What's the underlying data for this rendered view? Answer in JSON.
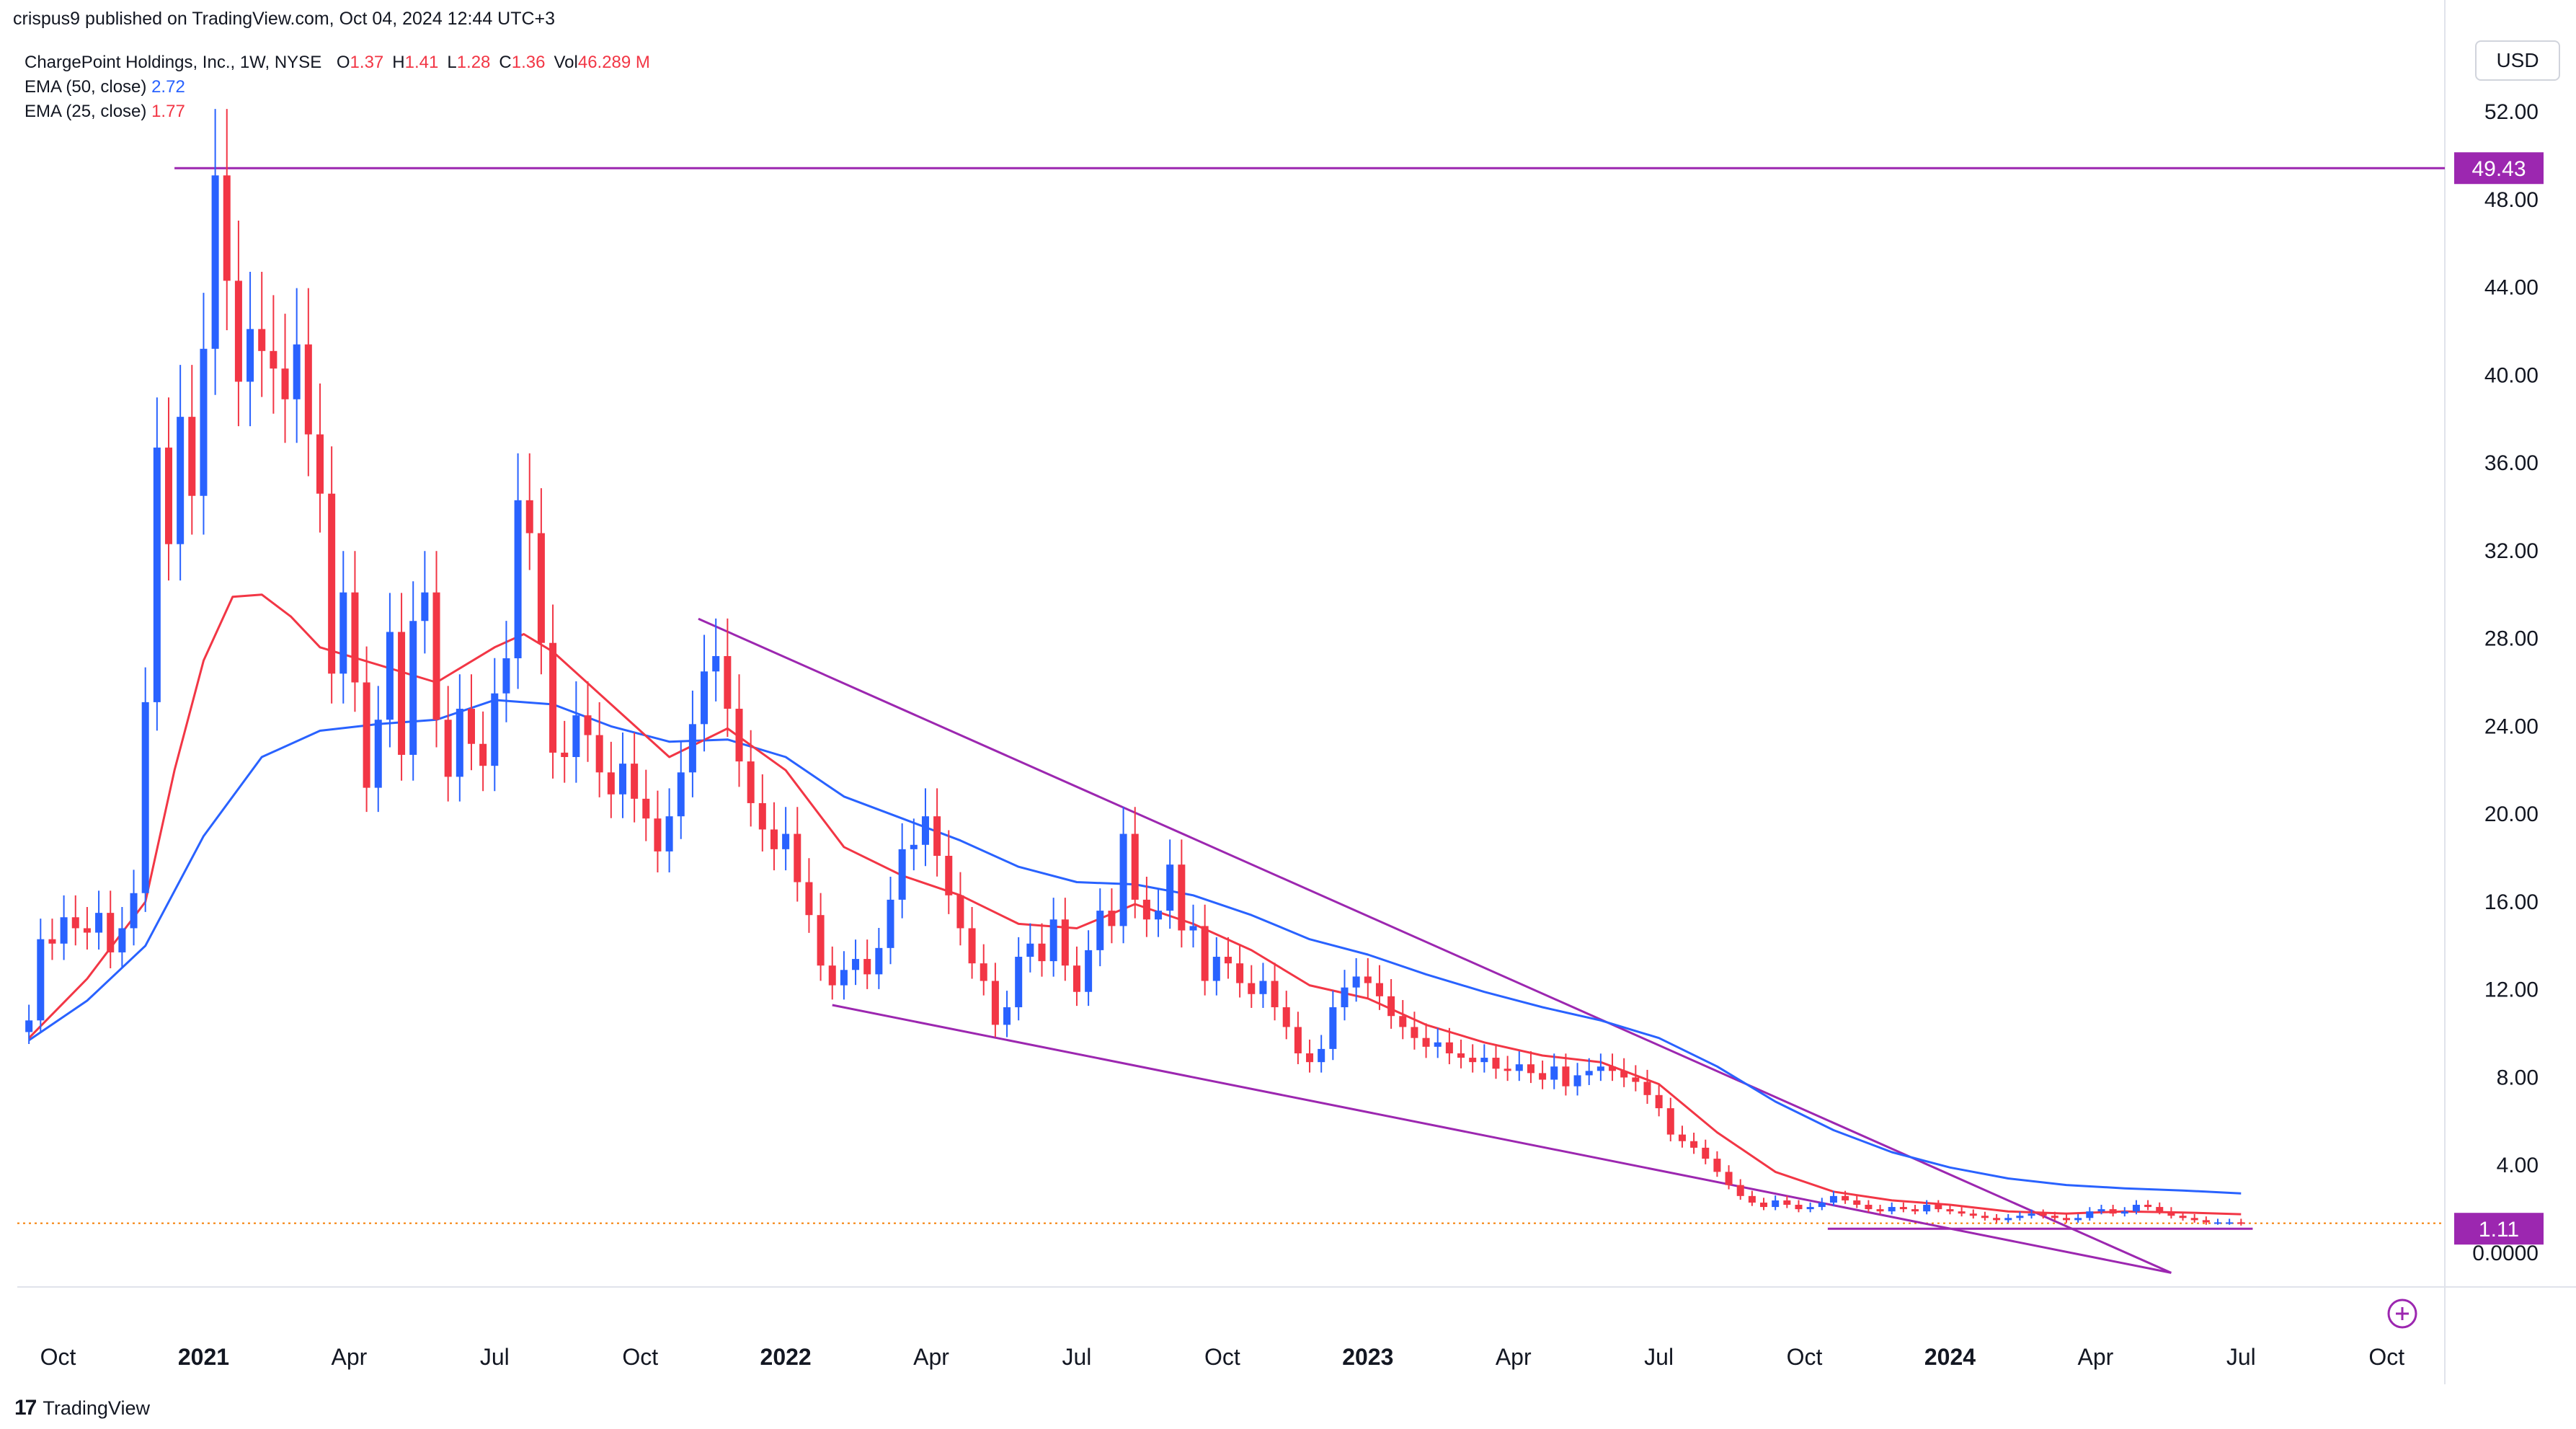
{
  "header": {
    "publisher": "crispus9 published on TradingView.com, Oct 04, 2024 12:44 UTC+3",
    "symbol": "ChargePoint Holdings, Inc., 1W, NYSE",
    "ohlc": [
      {
        "k": "O",
        "v": "1.37"
      },
      {
        "k": "H",
        "v": "1.41"
      },
      {
        "k": "L",
        "v": "1.28"
      },
      {
        "k": "C",
        "v": "1.36"
      },
      {
        "k": "Vol",
        "v": "46.289 M"
      }
    ],
    "indicators": [
      {
        "label": "EMA (50, close)",
        "value": "2.72",
        "color": "#2962ff"
      },
      {
        "label": "EMA (25, close)",
        "value": "1.77",
        "color": "#f23645"
      }
    ]
  },
  "currency_button": "USD",
  "footer": {
    "logo_text": "TradingView",
    "logo_mark": "17"
  },
  "colors": {
    "up": "#2962ff",
    "down": "#f23645",
    "wedge": "#9c27b0",
    "level": "#9c27b0",
    "ema50": "#2962ff",
    "ema25": "#f23645",
    "price_dotted": "#f57c00"
  },
  "chart_data": {
    "type": "candlestick",
    "interval": "1W",
    "y_axis": {
      "min": 0,
      "max": 52,
      "side": "right",
      "ticks": [
        "52.00",
        "48.00",
        "44.00",
        "40.00",
        "36.00",
        "32.00",
        "28.00",
        "24.00",
        "20.00",
        "16.00",
        "12.00",
        "8.00",
        "4.00",
        "0.0000"
      ],
      "tick_values": [
        52,
        48,
        44,
        40,
        36,
        32,
        28,
        24,
        20,
        16,
        12,
        8,
        4,
        0
      ]
    },
    "x_axis": {
      "ticks": [
        {
          "label": "Oct",
          "t": 2020.75,
          "bold": false
        },
        {
          "label": "2021",
          "t": 2021.0,
          "bold": true
        },
        {
          "label": "Apr",
          "t": 2021.25,
          "bold": false
        },
        {
          "label": "Jul",
          "t": 2021.5,
          "bold": false
        },
        {
          "label": "Oct",
          "t": 2021.75,
          "bold": false
        },
        {
          "label": "2022",
          "t": 2022.0,
          "bold": true
        },
        {
          "label": "Apr",
          "t": 2022.25,
          "bold": false
        },
        {
          "label": "Jul",
          "t": 2022.5,
          "bold": false
        },
        {
          "label": "Oct",
          "t": 2022.75,
          "bold": false
        },
        {
          "label": "2023",
          "t": 2023.0,
          "bold": true
        },
        {
          "label": "Apr",
          "t": 2023.25,
          "bold": false
        },
        {
          "label": "Jul",
          "t": 2023.5,
          "bold": false
        },
        {
          "label": "Oct",
          "t": 2023.75,
          "bold": false
        },
        {
          "label": "2024",
          "t": 2024.0,
          "bold": true
        },
        {
          "label": "Apr",
          "t": 2024.25,
          "bold": false
        },
        {
          "label": "Jul",
          "t": 2024.5,
          "bold": false
        },
        {
          "label": "Oct",
          "t": 2024.75,
          "bold": false
        }
      ]
    },
    "series": {
      "close": [
        [
          2020.7,
          10.6
        ],
        [
          2020.72,
          14.3
        ],
        [
          2020.74,
          14.1
        ],
        [
          2020.76,
          15.3
        ],
        [
          2020.78,
          14.8
        ],
        [
          2020.8,
          14.6
        ],
        [
          2020.82,
          15.5
        ],
        [
          2020.84,
          13.7
        ],
        [
          2020.86,
          14.8
        ],
        [
          2020.88,
          16.4
        ],
        [
          2020.9,
          25.1
        ],
        [
          2020.92,
          36.7
        ],
        [
          2020.94,
          32.3
        ],
        [
          2020.96,
          38.1
        ],
        [
          2020.98,
          34.5
        ],
        [
          2021.0,
          41.2
        ],
        [
          2021.02,
          49.1
        ],
        [
          2021.04,
          44.3
        ],
        [
          2021.06,
          39.7
        ],
        [
          2021.08,
          42.1
        ],
        [
          2021.1,
          41.1
        ],
        [
          2021.12,
          40.3
        ],
        [
          2021.14,
          38.9
        ],
        [
          2021.16,
          41.4
        ],
        [
          2021.18,
          37.3
        ],
        [
          2021.2,
          34.6
        ],
        [
          2021.22,
          26.4
        ],
        [
          2021.24,
          30.1
        ],
        [
          2021.26,
          26.0
        ],
        [
          2021.28,
          21.2
        ],
        [
          2021.3,
          24.3
        ],
        [
          2021.32,
          28.3
        ],
        [
          2021.34,
          22.7
        ],
        [
          2021.36,
          28.8
        ],
        [
          2021.38,
          30.1
        ],
        [
          2021.4,
          24.3
        ],
        [
          2021.42,
          21.7
        ],
        [
          2021.44,
          24.8
        ],
        [
          2021.46,
          23.2
        ],
        [
          2021.48,
          22.2
        ],
        [
          2021.5,
          25.5
        ],
        [
          2021.52,
          27.1
        ],
        [
          2021.54,
          34.3
        ],
        [
          2021.56,
          32.8
        ],
        [
          2021.58,
          27.8
        ],
        [
          2021.6,
          22.8
        ],
        [
          2021.62,
          22.6
        ],
        [
          2021.64,
          24.5
        ],
        [
          2021.66,
          23.6
        ],
        [
          2021.68,
          21.9
        ],
        [
          2021.7,
          20.9
        ],
        [
          2021.72,
          22.3
        ],
        [
          2021.74,
          20.7
        ],
        [
          2021.76,
          19.8
        ],
        [
          2021.78,
          18.3
        ],
        [
          2021.8,
          19.9
        ],
        [
          2021.82,
          21.9
        ],
        [
          2021.84,
          24.1
        ],
        [
          2021.86,
          26.5
        ],
        [
          2021.88,
          27.2
        ],
        [
          2021.9,
          24.8
        ],
        [
          2021.92,
          22.4
        ],
        [
          2021.94,
          20.5
        ],
        [
          2021.96,
          19.3
        ],
        [
          2021.98,
          18.4
        ],
        [
          2022.0,
          19.1
        ],
        [
          2022.02,
          16.9
        ],
        [
          2022.04,
          15.4
        ],
        [
          2022.06,
          13.1
        ],
        [
          2022.08,
          12.2
        ],
        [
          2022.1,
          12.9
        ],
        [
          2022.12,
          13.4
        ],
        [
          2022.14,
          12.7
        ],
        [
          2022.16,
          13.9
        ],
        [
          2022.18,
          16.1
        ],
        [
          2022.2,
          18.4
        ],
        [
          2022.22,
          18.6
        ],
        [
          2022.24,
          19.9
        ],
        [
          2022.26,
          18.1
        ],
        [
          2022.28,
          16.3
        ],
        [
          2022.3,
          14.8
        ],
        [
          2022.32,
          13.2
        ],
        [
          2022.34,
          12.4
        ],
        [
          2022.36,
          10.4
        ],
        [
          2022.38,
          11.2
        ],
        [
          2022.4,
          13.5
        ],
        [
          2022.42,
          14.1
        ],
        [
          2022.44,
          13.3
        ],
        [
          2022.46,
          15.2
        ],
        [
          2022.48,
          13.1
        ],
        [
          2022.5,
          11.9
        ],
        [
          2022.52,
          13.8
        ],
        [
          2022.54,
          15.6
        ],
        [
          2022.56,
          14.9
        ],
        [
          2022.58,
          19.1
        ],
        [
          2022.6,
          16.1
        ],
        [
          2022.62,
          15.2
        ],
        [
          2022.64,
          15.6
        ],
        [
          2022.66,
          17.7
        ],
        [
          2022.68,
          14.7
        ],
        [
          2022.7,
          14.9
        ],
        [
          2022.72,
          12.4
        ],
        [
          2022.74,
          13.5
        ],
        [
          2022.76,
          13.2
        ],
        [
          2022.78,
          12.3
        ],
        [
          2022.8,
          11.8
        ],
        [
          2022.82,
          12.4
        ],
        [
          2022.84,
          11.2
        ],
        [
          2022.86,
          10.3
        ],
        [
          2022.88,
          9.1
        ],
        [
          2022.9,
          8.7
        ],
        [
          2022.92,
          9.3
        ],
        [
          2022.94,
          11.2
        ],
        [
          2022.96,
          12.1
        ],
        [
          2022.98,
          12.6
        ],
        [
          2023.0,
          12.3
        ],
        [
          2023.02,
          11.7
        ],
        [
          2023.04,
          10.8
        ],
        [
          2023.06,
          10.3
        ],
        [
          2023.08,
          9.8
        ],
        [
          2023.1,
          9.4
        ],
        [
          2023.12,
          9.6
        ],
        [
          2023.14,
          9.1
        ],
        [
          2023.16,
          8.9
        ],
        [
          2023.18,
          8.7
        ],
        [
          2023.2,
          8.9
        ],
        [
          2023.22,
          8.4
        ],
        [
          2023.24,
          8.3
        ],
        [
          2023.26,
          8.6
        ],
        [
          2023.28,
          8.2
        ],
        [
          2023.3,
          7.9
        ],
        [
          2023.32,
          8.5
        ],
        [
          2023.34,
          7.6
        ],
        [
          2023.36,
          8.1
        ],
        [
          2023.38,
          8.3
        ],
        [
          2023.4,
          8.5
        ],
        [
          2023.42,
          8.3
        ],
        [
          2023.44,
          8.0
        ],
        [
          2023.46,
          7.8
        ],
        [
          2023.48,
          7.2
        ],
        [
          2023.5,
          6.6
        ],
        [
          2023.52,
          5.4
        ],
        [
          2023.54,
          5.1
        ],
        [
          2023.56,
          4.8
        ],
        [
          2023.58,
          4.3
        ],
        [
          2023.6,
          3.7
        ],
        [
          2023.62,
          3.1
        ],
        [
          2023.64,
          2.6
        ],
        [
          2023.66,
          2.3
        ],
        [
          2023.68,
          2.1
        ],
        [
          2023.7,
          2.4
        ],
        [
          2023.72,
          2.2
        ],
        [
          2023.74,
          2.0
        ],
        [
          2023.76,
          2.1
        ],
        [
          2023.78,
          2.3
        ],
        [
          2023.8,
          2.6
        ],
        [
          2023.82,
          2.4
        ],
        [
          2023.84,
          2.2
        ],
        [
          2023.86,
          2.0
        ],
        [
          2023.88,
          1.9
        ],
        [
          2023.9,
          2.1
        ],
        [
          2023.92,
          2.0
        ],
        [
          2023.94,
          1.9
        ],
        [
          2023.96,
          2.2
        ],
        [
          2023.98,
          2.0
        ],
        [
          2024.0,
          1.9
        ],
        [
          2024.02,
          1.8
        ],
        [
          2024.04,
          1.7
        ],
        [
          2024.06,
          1.6
        ],
        [
          2024.08,
          1.5
        ],
        [
          2024.1,
          1.6
        ],
        [
          2024.12,
          1.7
        ],
        [
          2024.14,
          1.8
        ],
        [
          2024.16,
          1.7
        ],
        [
          2024.18,
          1.6
        ],
        [
          2024.2,
          1.5
        ],
        [
          2024.22,
          1.6
        ],
        [
          2024.24,
          1.9
        ],
        [
          2024.26,
          2.0
        ],
        [
          2024.28,
          1.8
        ],
        [
          2024.3,
          1.9
        ],
        [
          2024.32,
          2.2
        ],
        [
          2024.34,
          2.1
        ],
        [
          2024.36,
          1.9
        ],
        [
          2024.38,
          1.7
        ],
        [
          2024.4,
          1.6
        ],
        [
          2024.42,
          1.5
        ],
        [
          2024.44,
          1.4
        ],
        [
          2024.46,
          1.4
        ],
        [
          2024.48,
          1.4
        ],
        [
          2024.5,
          1.36
        ]
      ],
      "ema25": [
        [
          2020.7,
          9.8
        ],
        [
          2020.8,
          12.5
        ],
        [
          2020.9,
          16.0
        ],
        [
          2020.95,
          22.0
        ],
        [
          2021.0,
          27.0
        ],
        [
          2021.05,
          29.9
        ],
        [
          2021.1,
          30.0
        ],
        [
          2021.15,
          29.0
        ],
        [
          2021.2,
          27.6
        ],
        [
          2021.3,
          26.8
        ],
        [
          2021.4,
          26.0
        ],
        [
          2021.5,
          27.6
        ],
        [
          2021.55,
          28.2
        ],
        [
          2021.6,
          27.4
        ],
        [
          2021.7,
          25.0
        ],
        [
          2021.8,
          22.6
        ],
        [
          2021.9,
          23.9
        ],
        [
          2022.0,
          22.0
        ],
        [
          2022.1,
          18.5
        ],
        [
          2022.2,
          17.2
        ],
        [
          2022.3,
          16.3
        ],
        [
          2022.4,
          15.0
        ],
        [
          2022.5,
          14.8
        ],
        [
          2022.6,
          15.9
        ],
        [
          2022.7,
          15.0
        ],
        [
          2022.8,
          13.8
        ],
        [
          2022.9,
          12.2
        ],
        [
          2023.0,
          11.6
        ],
        [
          2023.1,
          10.4
        ],
        [
          2023.2,
          9.6
        ],
        [
          2023.3,
          9.0
        ],
        [
          2023.4,
          8.7
        ],
        [
          2023.5,
          7.7
        ],
        [
          2023.6,
          5.5
        ],
        [
          2023.7,
          3.7
        ],
        [
          2023.8,
          2.8
        ],
        [
          2023.9,
          2.4
        ],
        [
          2024.0,
          2.2
        ],
        [
          2024.1,
          1.9
        ],
        [
          2024.2,
          1.8
        ],
        [
          2024.3,
          1.9
        ],
        [
          2024.4,
          1.85
        ],
        [
          2024.5,
          1.77
        ]
      ],
      "ema50": [
        [
          2020.7,
          9.7
        ],
        [
          2020.8,
          11.5
        ],
        [
          2020.9,
          14.0
        ],
        [
          2021.0,
          19.0
        ],
        [
          2021.1,
          22.6
        ],
        [
          2021.2,
          23.8
        ],
        [
          2021.3,
          24.1
        ],
        [
          2021.4,
          24.3
        ],
        [
          2021.5,
          25.2
        ],
        [
          2021.6,
          25.0
        ],
        [
          2021.7,
          24.0
        ],
        [
          2021.8,
          23.3
        ],
        [
          2021.9,
          23.4
        ],
        [
          2022.0,
          22.6
        ],
        [
          2022.1,
          20.8
        ],
        [
          2022.2,
          19.8
        ],
        [
          2022.3,
          18.8
        ],
        [
          2022.4,
          17.6
        ],
        [
          2022.5,
          16.9
        ],
        [
          2022.6,
          16.8
        ],
        [
          2022.7,
          16.3
        ],
        [
          2022.8,
          15.4
        ],
        [
          2022.9,
          14.3
        ],
        [
          2023.0,
          13.6
        ],
        [
          2023.1,
          12.7
        ],
        [
          2023.2,
          11.9
        ],
        [
          2023.3,
          11.2
        ],
        [
          2023.4,
          10.6
        ],
        [
          2023.5,
          9.8
        ],
        [
          2023.6,
          8.5
        ],
        [
          2023.7,
          6.9
        ],
        [
          2023.8,
          5.6
        ],
        [
          2023.9,
          4.6
        ],
        [
          2024.0,
          3.9
        ],
        [
          2024.1,
          3.4
        ],
        [
          2024.2,
          3.1
        ],
        [
          2024.3,
          2.95
        ],
        [
          2024.4,
          2.85
        ],
        [
          2024.5,
          2.72
        ]
      ]
    },
    "drawings": {
      "wedge_upper": [
        [
          2021.85,
          28.9
        ],
        [
          2024.38,
          -0.9
        ]
      ],
      "wedge_lower": [
        [
          2022.08,
          11.3
        ],
        [
          2024.38,
          -0.9
        ]
      ],
      "support_line": [
        [
          2023.79,
          1.11
        ],
        [
          2024.52,
          1.11
        ]
      ],
      "resistance_line": [
        [
          2020.95,
          49.43
        ],
        [
          2024.58,
          49.43
        ]
      ]
    },
    "price_labels": [
      {
        "text": "49.43",
        "value": 49.43,
        "color": "#9c27b0"
      },
      {
        "text": "1.11",
        "value": 1.11,
        "color": "#9c27b0"
      }
    ],
    "current_price_line": 1.36
  }
}
